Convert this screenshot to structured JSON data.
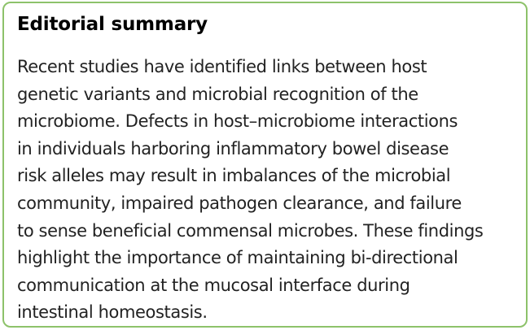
{
  "summary": {
    "title": "Editorial summary",
    "lines": [
      "Recent studies have identified links between host",
      "genetic variants and microbial recognition of the",
      "microbiome. Defects in host–microbiome interactions",
      "in individuals harboring inflammatory bowel disease",
      "risk alleles may result in imbalances of the microbial",
      "community, impaired pathogen clearance, and failure",
      "to sense beneficial commensal microbes. These findings",
      "highlight the importance of maintaining bi-directional",
      "communication at the mucosal interface during",
      "intestinal homeostasis."
    ],
    "border_color": "#8dc26a"
  }
}
